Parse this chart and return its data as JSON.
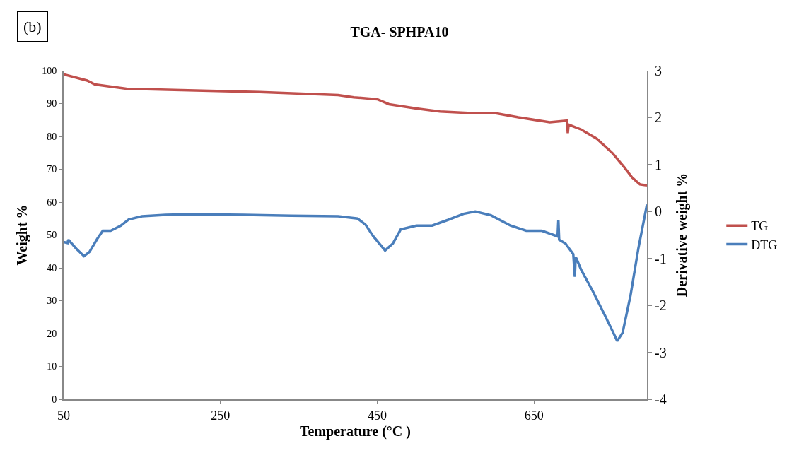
{
  "chart_data": {
    "type": "line",
    "title": "TGA- SPHPA10",
    "xlabel": "Temperature (°C )",
    "ylabel": "Weight %",
    "y2label": "Derivative weight %",
    "annotations": [
      "(b)"
    ],
    "xlim": [
      50,
      794
    ],
    "xticks": [
      50,
      250,
      450,
      650
    ],
    "ylim": [
      0,
      100
    ],
    "yticks": [
      0,
      10,
      20,
      30,
      40,
      50,
      60,
      70,
      80,
      90,
      100
    ],
    "y2lim": [
      -4,
      3
    ],
    "y2ticks": [
      -4,
      -3,
      -2,
      -1,
      0,
      1,
      2,
      3
    ],
    "legend": "right",
    "marker": "none",
    "line_style": "solid",
    "series": [
      {
        "name": "TG",
        "color": "#c0504d",
        "x": [
          50,
          80,
          90,
          130,
          200,
          300,
          400,
          420,
          450,
          465,
          500,
          530,
          570,
          600,
          630,
          670,
          692,
          693,
          694,
          710,
          730,
          750,
          765,
          775,
          785,
          794
        ],
        "values": [
          98.9,
          97.0,
          95.8,
          94.5,
          94.1,
          93.5,
          92.6,
          91.9,
          91.3,
          89.8,
          88.5,
          87.6,
          87.1,
          87.1,
          85.8,
          84.3,
          84.8,
          81.0,
          83.6,
          82.1,
          79.3,
          74.9,
          70.6,
          67.5,
          65.4,
          65.1
        ]
      },
      {
        "name": "DTG",
        "color": "#4a7ebb",
        "axis": "y2",
        "x": [
          50,
          55,
          56,
          66,
          76,
          83,
          93,
          100,
          110,
          123,
          133,
          150,
          180,
          220,
          280,
          340,
          400,
          425,
          435,
          445,
          460,
          470,
          480,
          500,
          520,
          540,
          560,
          575,
          595,
          620,
          640,
          660,
          680,
          681,
          682,
          690,
          700,
          702,
          703,
          704,
          710,
          725,
          740,
          753,
          756,
          763,
          773,
          783,
          794
        ],
        "values": [
          -0.65,
          -0.67,
          -0.6,
          -0.79,
          -0.95,
          -0.86,
          -0.58,
          -0.41,
          -0.41,
          -0.3,
          -0.17,
          -0.1,
          -0.07,
          -0.06,
          -0.07,
          -0.09,
          -0.1,
          -0.15,
          -0.28,
          -0.53,
          -0.83,
          -0.68,
          -0.38,
          -0.3,
          -0.3,
          -0.18,
          -0.05,
          0.0,
          -0.08,
          -0.3,
          -0.41,
          -0.41,
          -0.53,
          -0.18,
          -0.6,
          -0.68,
          -0.91,
          -1.39,
          -0.98,
          -1.0,
          -1.24,
          -1.7,
          -2.2,
          -2.65,
          -2.76,
          -2.58,
          -1.79,
          -0.79,
          0.15
        ]
      }
    ]
  }
}
